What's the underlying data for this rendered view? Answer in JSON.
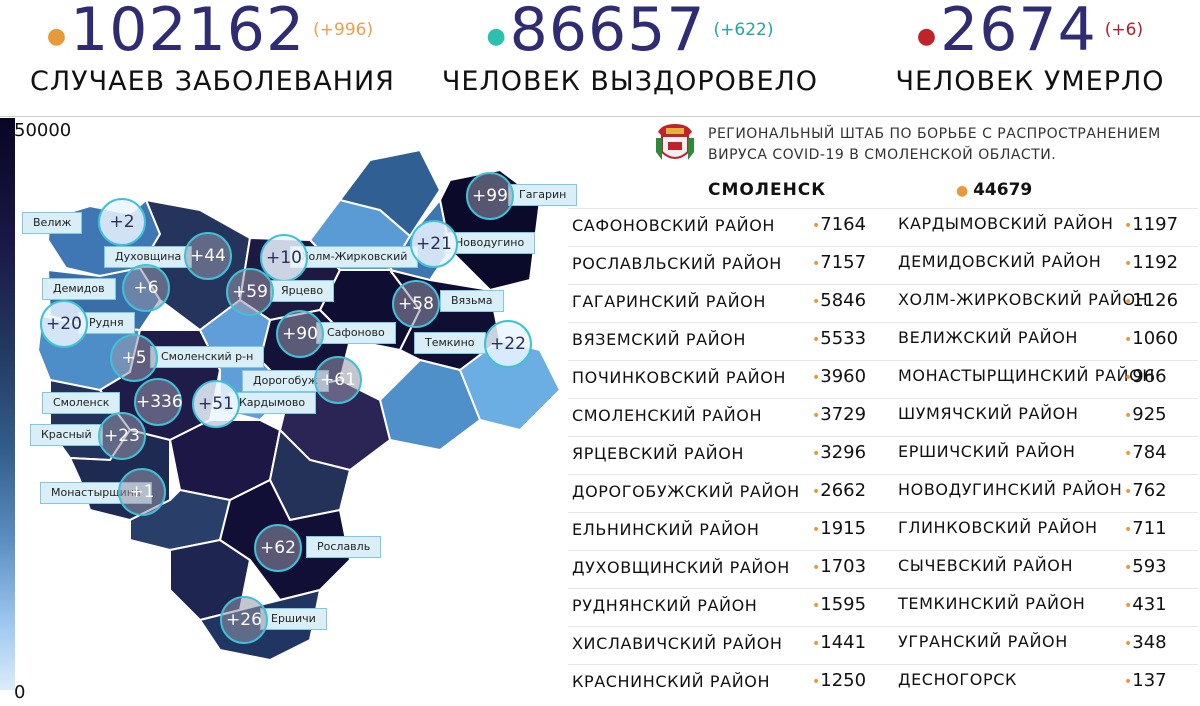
{
  "stats": {
    "cases": {
      "value": "102162",
      "delta": "(+996)",
      "label": "СЛУЧАЕВ ЗАБОЛЕВАНИЯ",
      "dot_color": "#e89a3b"
    },
    "recovered": {
      "value": "86657",
      "delta": "(+622)",
      "label": "ЧЕЛОВЕК ВЫЗДОРОВЕЛО",
      "dot_color": "#2bbfb0"
    },
    "deaths": {
      "value": "2674",
      "delta": "(+6)",
      "label": "ЧЕЛОВЕК УМЕРЛО",
      "dot_color": "#c0232a"
    }
  },
  "legend": {
    "max": "50000",
    "min": "0"
  },
  "header": {
    "line1": "РЕГИОНАЛЬНЫЙ ШТАБ ПО БОРЬБЕ С РАСПРОСТРАНЕНИЕМ",
    "line2": "ВИРУСА COVID-19 В СМОЛЕНСКОЙ ОБЛАСТИ."
  },
  "city": {
    "name": "СМОЛЕНСК",
    "value": "44679"
  },
  "rows": [
    {
      "n1": "САФОНОВСКИЙ РАЙОН",
      "v1": "7164",
      "n2": "КАРДЫМОВСКИЙ РАЙОН",
      "v2": "1197"
    },
    {
      "n1": "РОСЛАВЛЬСКИЙ РАЙОН",
      "v1": "7157",
      "n2": "ДЕМИДОВСКИЙ РАЙОН",
      "v2": "1192"
    },
    {
      "n1": "ГАГАРИНСКИЙ РАЙОН",
      "v1": "5846",
      "n2": "ХОЛМ-ЖИРКОВСКИЙ РАЙОН",
      "v2": "1126"
    },
    {
      "n1": "ВЯЗЕМСКИЙ РАЙОН",
      "v1": "5533",
      "n2": "ВЕЛИЖСКИЙ РАЙОН",
      "v2": "1060"
    },
    {
      "n1": "ПОЧИНКОВСКИЙ РАЙОН",
      "v1": "3960",
      "n2": "МОНАСТЫРЩИНСКИЙ РАЙОН",
      "v2": "966"
    },
    {
      "n1": "СМОЛЕНСКИЙ РАЙОН",
      "v1": "3729",
      "n2": "ШУМЯЧСКИЙ РАЙОН",
      "v2": "925"
    },
    {
      "n1": "ЯРЦЕВСКИЙ РАЙОН",
      "v1": "3296",
      "n2": "ЕРШИЧСКИЙ РАЙОН",
      "v2": "784"
    },
    {
      "n1": "ДОРОГОБУЖСКИЙ РАЙОН",
      "v1": "2662",
      "n2": "НОВОДУГИНСКИЙ РАЙОН",
      "v2": "762"
    },
    {
      "n1": "ЕЛЬНИНСКИЙ РАЙОН",
      "v1": "1915",
      "n2": "ГЛИНКОВСКИЙ РАЙОН",
      "v2": "711"
    },
    {
      "n1": "ДУХОВЩИНСКИЙ РАЙОН",
      "v1": "1703",
      "n2": "СЫЧЕВСКИЙ РАЙОН",
      "v2": "593"
    },
    {
      "n1": "РУДНЯНСКИЙ РАЙОН",
      "v1": "1595",
      "n2": "ТЕМКИНСКИЙ РАЙОН",
      "v2": "431"
    },
    {
      "n1": "ХИСЛАВИЧСКИЙ РАЙОН",
      "v1": "1441",
      "n2": "УГРАНСКИЙ РАЙОН",
      "v2": "348"
    },
    {
      "n1": "КРАСНИНСКИЙ РАЙОН",
      "v1": "1250",
      "n2": "ДЕСНОГОРСК",
      "v2": "137"
    }
  ],
  "map_labels": [
    {
      "name": "Велиж",
      "delta": "+2"
    },
    {
      "name": "Духовщина",
      "delta": "+44"
    },
    {
      "name": "Демидов",
      "delta": "+6"
    },
    {
      "name": "Рудня",
      "delta": "+20"
    },
    {
      "name": "Смоленский р-н",
      "delta": "+5"
    },
    {
      "name": "Смоленск",
      "delta": "+336"
    },
    {
      "name": "Красный",
      "delta": "+23"
    },
    {
      "name": "Монастырщина",
      "delta": "+1"
    },
    {
      "name": "Холм-Жирковский",
      "delta": "+10"
    },
    {
      "name": "Ярцево",
      "delta": "+59"
    },
    {
      "name": "Сафоново",
      "delta": "+90"
    },
    {
      "name": "Дорогобуж",
      "delta": "+61"
    },
    {
      "name": "Кардымово",
      "delta": "+51"
    },
    {
      "name": "Гагарин",
      "delta": "+99"
    },
    {
      "name": "Новодугино",
      "delta": "+21"
    },
    {
      "name": "Вязьма",
      "delta": "+58"
    },
    {
      "name": "Темкино",
      "delta": "+22"
    },
    {
      "name": "Рославль",
      "delta": "+62"
    },
    {
      "name": "Ершичи",
      "delta": "+26"
    }
  ]
}
